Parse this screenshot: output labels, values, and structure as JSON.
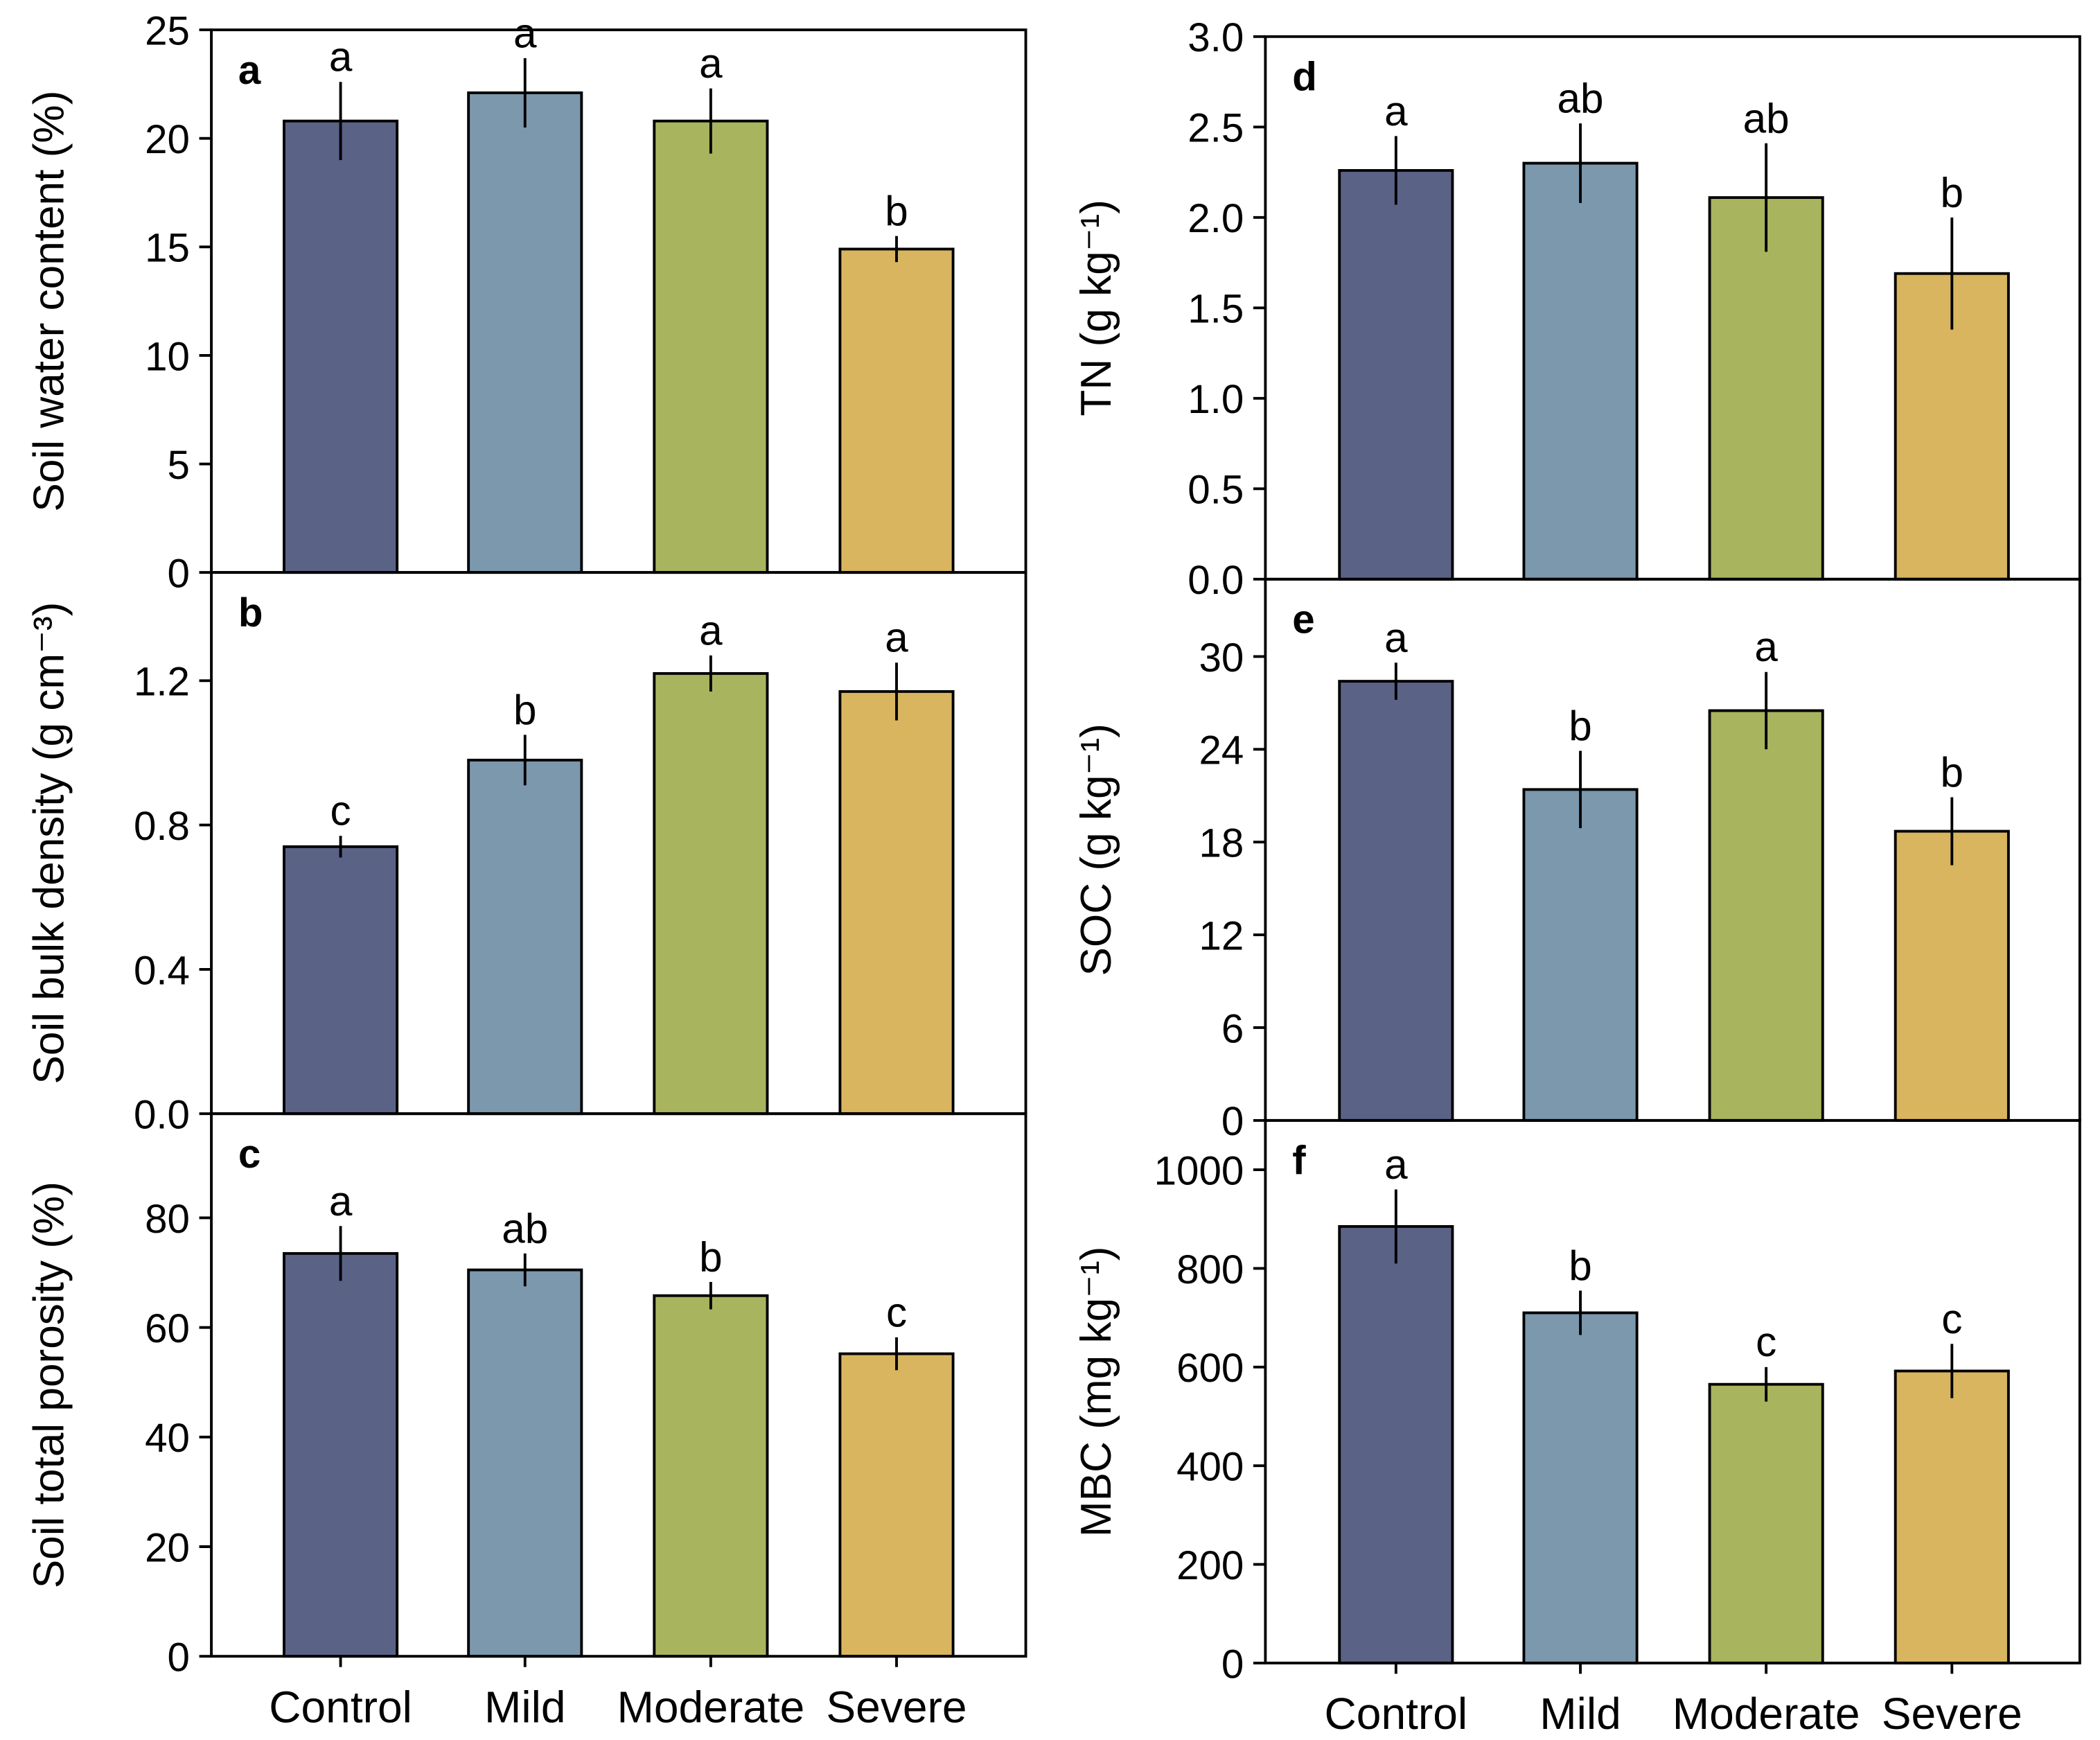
{
  "chart_data": [
    {
      "panel": "a",
      "type": "bar",
      "ylabel": "Soil water content (%)",
      "ylim": [
        0,
        25
      ],
      "yticks": [
        0,
        5,
        10,
        15,
        20,
        25
      ],
      "tick_decimals": 0,
      "categories": [
        "Control",
        "Mild",
        "Moderate",
        "Severe"
      ],
      "values": [
        20.8,
        22.1,
        20.8,
        14.9
      ],
      "errors": [
        1.8,
        1.6,
        1.5,
        0.6
      ],
      "letters": [
        "a",
        "a",
        "a",
        "b"
      ],
      "column": "left",
      "row": 0
    },
    {
      "panel": "b",
      "type": "bar",
      "ylabel": "Soil bulk density (g cm⁻³)",
      "ylim": [
        0,
        1.5
      ],
      "yticks": [
        0.0,
        0.4,
        0.8,
        1.2
      ],
      "tick_decimals": 1,
      "categories": [
        "Control",
        "Mild",
        "Moderate",
        "Severe"
      ],
      "values": [
        0.74,
        0.98,
        1.22,
        1.17
      ],
      "errors": [
        0.03,
        0.07,
        0.05,
        0.08
      ],
      "letters": [
        "c",
        "b",
        "a",
        "a"
      ],
      "column": "left",
      "row": 1
    },
    {
      "panel": "c",
      "type": "bar",
      "ylabel": "Soil total porosity (%)",
      "ylim": [
        0,
        99
      ],
      "yticks": [
        0,
        20,
        40,
        60,
        80
      ],
      "tick_decimals": 0,
      "categories": [
        "Control",
        "Mild",
        "Moderate",
        "Severe"
      ],
      "values": [
        73.5,
        70.5,
        65.8,
        55.2
      ],
      "errors": [
        5,
        3,
        2.5,
        3
      ],
      "letters": [
        "a",
        "ab",
        "b",
        "c"
      ],
      "column": "left",
      "row": 2
    },
    {
      "panel": "d",
      "type": "bar",
      "ylabel": "TN (g kg⁻¹)",
      "ylim": [
        0,
        3.0
      ],
      "yticks": [
        0.0,
        0.5,
        1.0,
        1.5,
        2.0,
        2.5,
        3.0
      ],
      "tick_decimals": 1,
      "categories": [
        "Control",
        "Mild",
        "Moderate",
        "Severe"
      ],
      "values": [
        2.26,
        2.3,
        2.11,
        1.69
      ],
      "errors": [
        0.19,
        0.22,
        0.3,
        0.31
      ],
      "letters": [
        "a",
        "ab",
        "ab",
        "b"
      ],
      "column": "right",
      "row": 0
    },
    {
      "panel": "e",
      "type": "bar",
      "ylabel": "SOC (g kg⁻¹)",
      "ylim": [
        0,
        35
      ],
      "yticks": [
        0,
        6,
        12,
        18,
        24,
        30
      ],
      "tick_decimals": 0,
      "categories": [
        "Control",
        "Mild",
        "Moderate",
        "Severe"
      ],
      "values": [
        28.4,
        21.4,
        26.5,
        18.7
      ],
      "errors": [
        1.2,
        2.5,
        2.5,
        2.2
      ],
      "letters": [
        "a",
        "b",
        "a",
        "b"
      ],
      "column": "right",
      "row": 1
    },
    {
      "panel": "f",
      "type": "bar",
      "ylabel": "MBC (mg kg⁻¹)",
      "ylim": [
        0,
        1100
      ],
      "yticks": [
        0,
        200,
        400,
        600,
        800,
        1000
      ],
      "tick_decimals": 0,
      "categories": [
        "Control",
        "Mild",
        "Moderate",
        "Severe"
      ],
      "values": [
        885,
        710,
        565,
        592
      ],
      "errors": [
        75,
        45,
        35,
        55
      ],
      "letters": [
        "a",
        "b",
        "c",
        "c"
      ],
      "column": "right",
      "row": 2
    }
  ],
  "colors": [
    "#5a6286",
    "#7b98ad",
    "#a9b45e",
    "#d8b55e"
  ]
}
